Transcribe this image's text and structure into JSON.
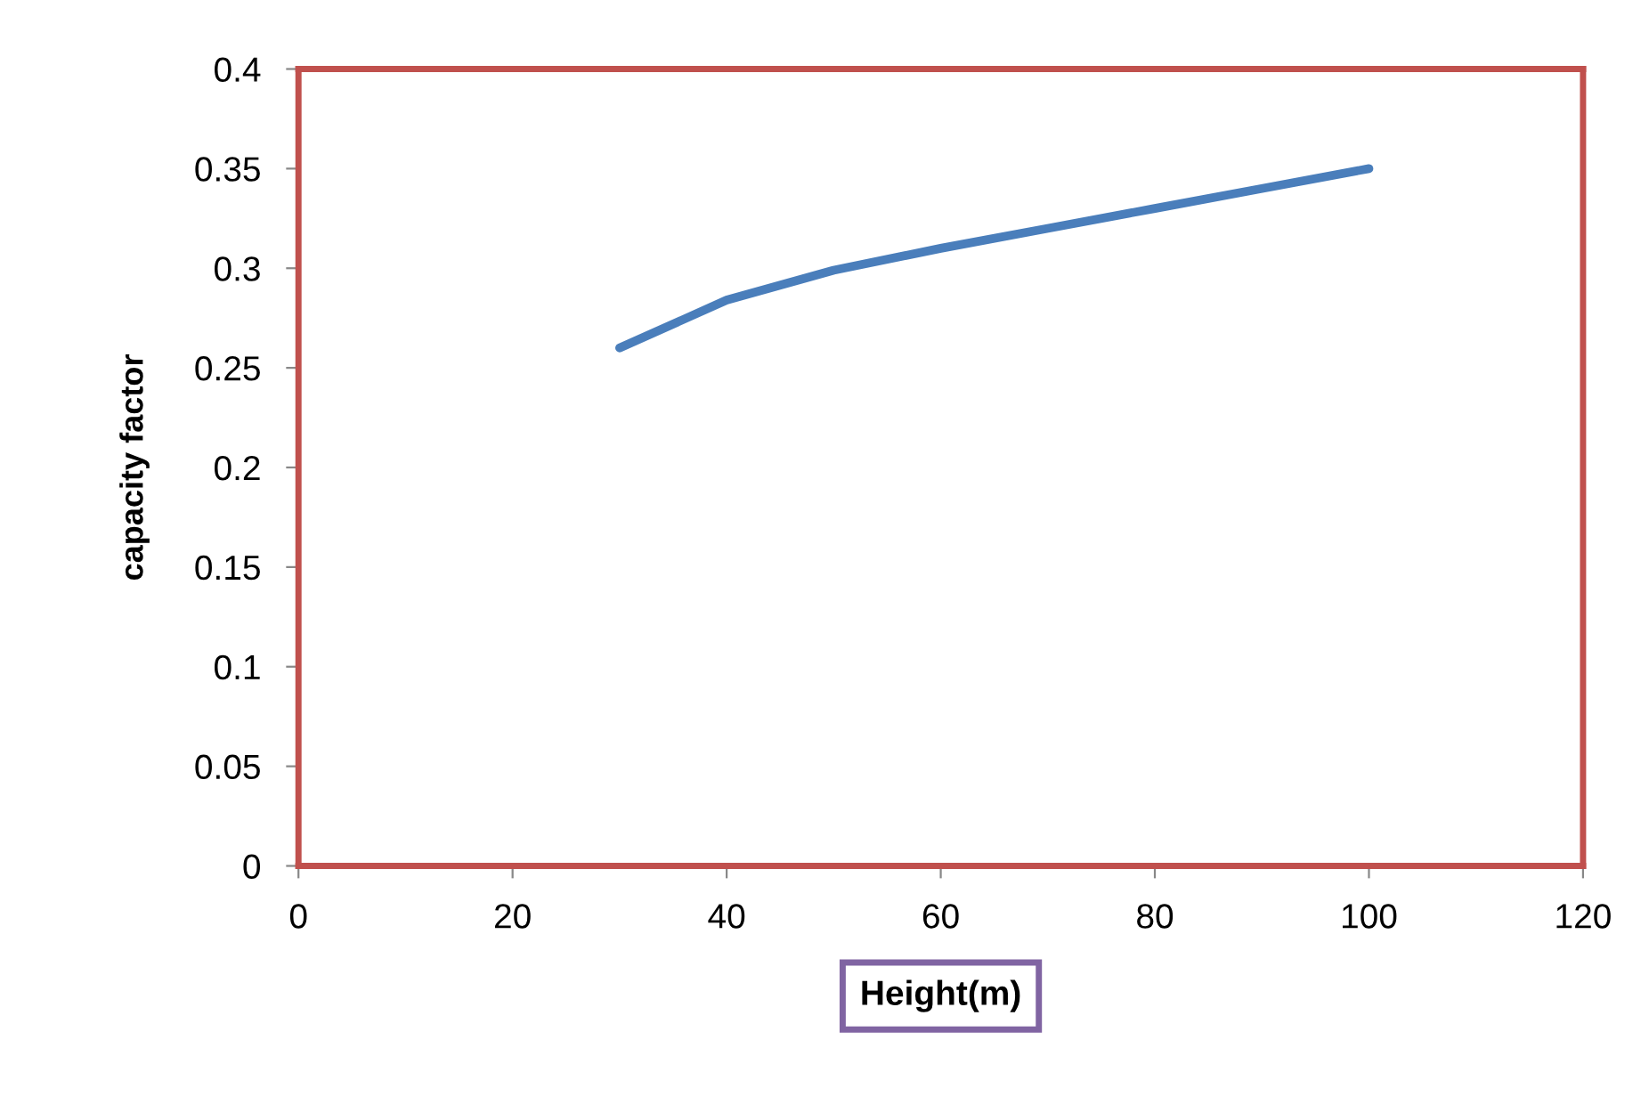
{
  "chart_data": {
    "type": "line",
    "xlabel": "Height(m)",
    "ylabel": "capacity factor",
    "x": [
      30,
      40,
      50,
      60,
      70,
      80,
      90,
      100
    ],
    "series": [
      {
        "color": "#4a7ebb",
        "values": [
          0.26,
          0.284,
          0.299,
          0.31,
          0.32,
          0.33,
          0.34,
          0.35
        ]
      }
    ],
    "xlim": [
      0,
      120
    ],
    "xticks": [
      0,
      20,
      40,
      60,
      80,
      100,
      120
    ],
    "ylim": [
      0,
      0.4
    ],
    "yticks": [
      0,
      0.05,
      0.1,
      0.15,
      0.2,
      0.25,
      0.3,
      0.35,
      0.4
    ],
    "grid": false,
    "legend": false,
    "marker": "none",
    "line_style": "solid"
  }
}
